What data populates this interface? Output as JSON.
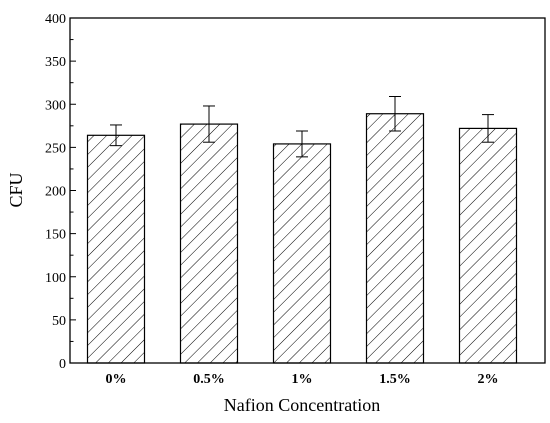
{
  "chart_data": {
    "type": "bar",
    "xlabel": "Nafion Concentration",
    "ylabel": "CFU",
    "ylim": [
      0,
      400
    ],
    "yticks": [
      0,
      50,
      100,
      150,
      200,
      250,
      300,
      350,
      400
    ],
    "categories": [
      "0%",
      "0.5%",
      "1%",
      "1.5%",
      "2%"
    ],
    "series": [
      {
        "values": [
          264,
          277,
          254,
          289,
          272
        ],
        "errors": [
          12,
          21,
          15,
          20,
          16
        ]
      }
    ],
    "bar_fill": "hatched",
    "bar_color": "#000000",
    "background_color": "#ffffff",
    "grid": false,
    "legend": "none"
  }
}
